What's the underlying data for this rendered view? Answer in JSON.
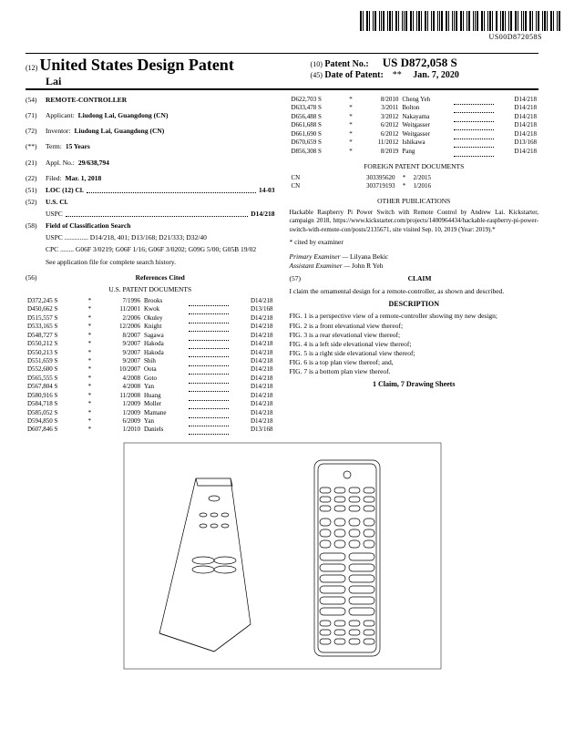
{
  "barcode_num": "US00D872058S",
  "header": {
    "sup12": "(12)",
    "title": "United States Design Patent",
    "inventor_line": "Lai",
    "sup10": "(10)",
    "patno_label": "Patent No.:",
    "patno": "US D872,058 S",
    "sup45": "(45)",
    "date_label": "Date of Patent:",
    "star": "**",
    "date": "Jan. 7, 2020"
  },
  "left": {
    "f54_code": "(54)",
    "f54": "REMOTE-CONTROLLER",
    "f71_code": "(71)",
    "f71_lbl": "Applicant:",
    "f71_val": "Liudong Lai, Guangdong (CN)",
    "f72_code": "(72)",
    "f72_lbl": "Inventor:",
    "f72_val": "Liudong Lai, Guangdong (CN)",
    "fterm_code": "(**)",
    "fterm_lbl": "Term:",
    "fterm_val": "15 Years",
    "f21_code": "(21)",
    "f21_lbl": "Appl. No.:",
    "f21_val": "29/638,794",
    "f22_code": "(22)",
    "f22_lbl": "Filed:",
    "f22_val": "Mar. 1, 2018",
    "f51_code": "(51)",
    "f51_lbl": "LOC (12) Cl.",
    "f51_val": "14-03",
    "f52_code": "(52)",
    "f52_lbl": "U.S. Cl.",
    "f52_uspc": "USPC",
    "f52_val": "D14/218",
    "f58_code": "(58)",
    "f58_lbl": "Field of Classification Search",
    "f58_uspc": "USPC .............. D14/218, 401; D13/168; D21/333; D32/40",
    "f58_cpc": "CPC ........ G06F 3/0219; G06F 1/16; G06F 3/0202; G09G 5/00; G05B 19/02",
    "f58_note": "See application file for complete search history.",
    "f56_code": "(56)",
    "f56_lbl": "References Cited",
    "uspat_head": "U.S. PATENT DOCUMENTS"
  },
  "uspat": [
    [
      "D372,245 S",
      "*",
      "7/1996",
      "Brooks",
      "D14/218"
    ],
    [
      "D450,662 S",
      "*",
      "11/2001",
      "Kwok",
      "D13/168"
    ],
    [
      "D515,557 S",
      "*",
      "2/2006",
      "Okuley",
      "D14/218"
    ],
    [
      "D533,165 S",
      "*",
      "12/2006",
      "Knight",
      "D14/218"
    ],
    [
      "D548,727 S",
      "*",
      "8/2007",
      "Sagawa",
      "D14/218"
    ],
    [
      "D550,212 S",
      "*",
      "9/2007",
      "Hakoda",
      "D14/218"
    ],
    [
      "D550,213 S",
      "*",
      "9/2007",
      "Hakoda",
      "D14/218"
    ],
    [
      "D551,659 S",
      "*",
      "9/2007",
      "Shih",
      "D14/218"
    ],
    [
      "D552,600 S",
      "*",
      "10/2007",
      "Oota",
      "D14/218"
    ],
    [
      "D565,555 S",
      "*",
      "4/2008",
      "Goto",
      "D14/218"
    ],
    [
      "D567,804 S",
      "*",
      "4/2008",
      "Yan",
      "D14/218"
    ],
    [
      "D580,916 S",
      "*",
      "11/2008",
      "Huang",
      "D14/218"
    ],
    [
      "D584,718 S",
      "*",
      "1/2009",
      "Moller",
      "D14/218"
    ],
    [
      "D585,052 S",
      "*",
      "1/2009",
      "Mamane",
      "D14/218"
    ],
    [
      "D594,850 S",
      "*",
      "6/2009",
      "Yan",
      "D14/218"
    ],
    [
      "D607,846 S",
      "*",
      "1/2010",
      "Daniels",
      "D13/168"
    ]
  ],
  "uspat2": [
    [
      "D622,703 S",
      "*",
      "8/2010",
      "Cheng Yeh",
      "D14/218"
    ],
    [
      "D633,478 S",
      "*",
      "3/2011",
      "Bolton",
      "D14/218"
    ],
    [
      "D656,488 S",
      "*",
      "3/2012",
      "Nakayama",
      "D14/218"
    ],
    [
      "D661,688 S",
      "*",
      "6/2012",
      "Weitgasser",
      "D14/218"
    ],
    [
      "D661,690 S",
      "*",
      "6/2012",
      "Weitgasser",
      "D14/218"
    ],
    [
      "D670,659 S",
      "*",
      "11/2012",
      "Ishikawa",
      "D13/168"
    ],
    [
      "D856,308 S",
      "*",
      "8/2019",
      "Pang",
      "D14/218"
    ]
  ],
  "foreign_head": "FOREIGN PATENT DOCUMENTS",
  "foreign": [
    [
      "CN",
      "303395620",
      "*",
      "2/2015"
    ],
    [
      "CN",
      "303719193",
      "*",
      "1/2016"
    ]
  ],
  "other_head": "OTHER PUBLICATIONS",
  "other_text": "Hackable Raspberry Pi Power Switch with Remote Control by Andrew Lai. Kickstarter, campaign 2018, https://www.kickstarter.com/projects/1400964434/hackable-raspberry-pi-power-switch-with-remote-con/posts/2135671, site visited Sep. 10, 2019 (Year: 2019).*",
  "cited": "* cited by examiner",
  "examiners": {
    "pe_lbl": "Primary Examiner —",
    "pe": "Lilyana Bekic",
    "ae_lbl": "Assistant Examiner —",
    "ae": "John R Yeh"
  },
  "claim_code": "(57)",
  "claim_head": "CLAIM",
  "claim_text": "I claim the ornamental design for a remote-controller, as shown and described.",
  "desc_head": "DESCRIPTION",
  "desc": [
    "FIG. 1 is a perspective view of a remote-controller showing my new design;",
    "FIG. 2 is a front elevational view thereof;",
    "FIG. 3 is a rear elevational view thereof;",
    "FIG. 4 is a left side elevational view thereof;",
    "FIG. 5 is a right side elevational view thereof;",
    "FIG. 6 is a top plan view thereof; and,",
    "FIG. 7 is a bottom plan view thereof."
  ],
  "sheets": "1 Claim, 7 Drawing Sheets"
}
